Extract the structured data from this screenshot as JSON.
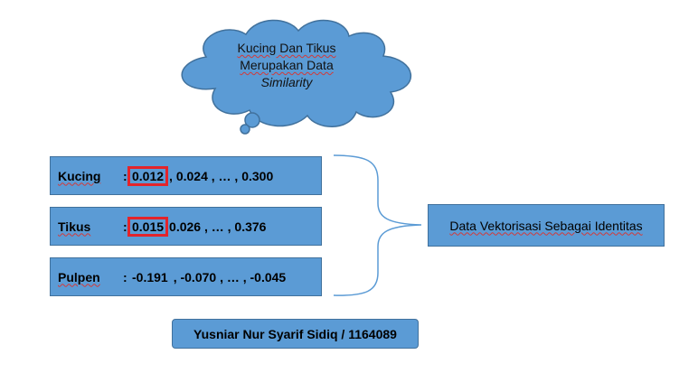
{
  "cloud": {
    "line1": "Kucing Dan Tikus",
    "line2": "Merupakan Data",
    "line3": "Similarity"
  },
  "vectors": [
    {
      "label": "Kucing",
      "first": "0.012",
      "rest": ", 0.024 , … , 0.300",
      "highlighted": true
    },
    {
      "label": "Tikus",
      "first": "0.015",
      "rest": "0.026 , … , 0.376",
      "highlighted": true
    },
    {
      "label": "Pulpen",
      "first": "-0.191",
      "rest": ", -0.070 , … , -0.045",
      "highlighted": false
    }
  ],
  "identity_box": "Data Vektorisasi Sebagai Identitas",
  "author": "Yusniar Nur Syarif Sidiq / 1164089",
  "colors": {
    "box_fill": "#5b9bd5",
    "box_border": "#41719c",
    "highlight": "#e3242b"
  }
}
